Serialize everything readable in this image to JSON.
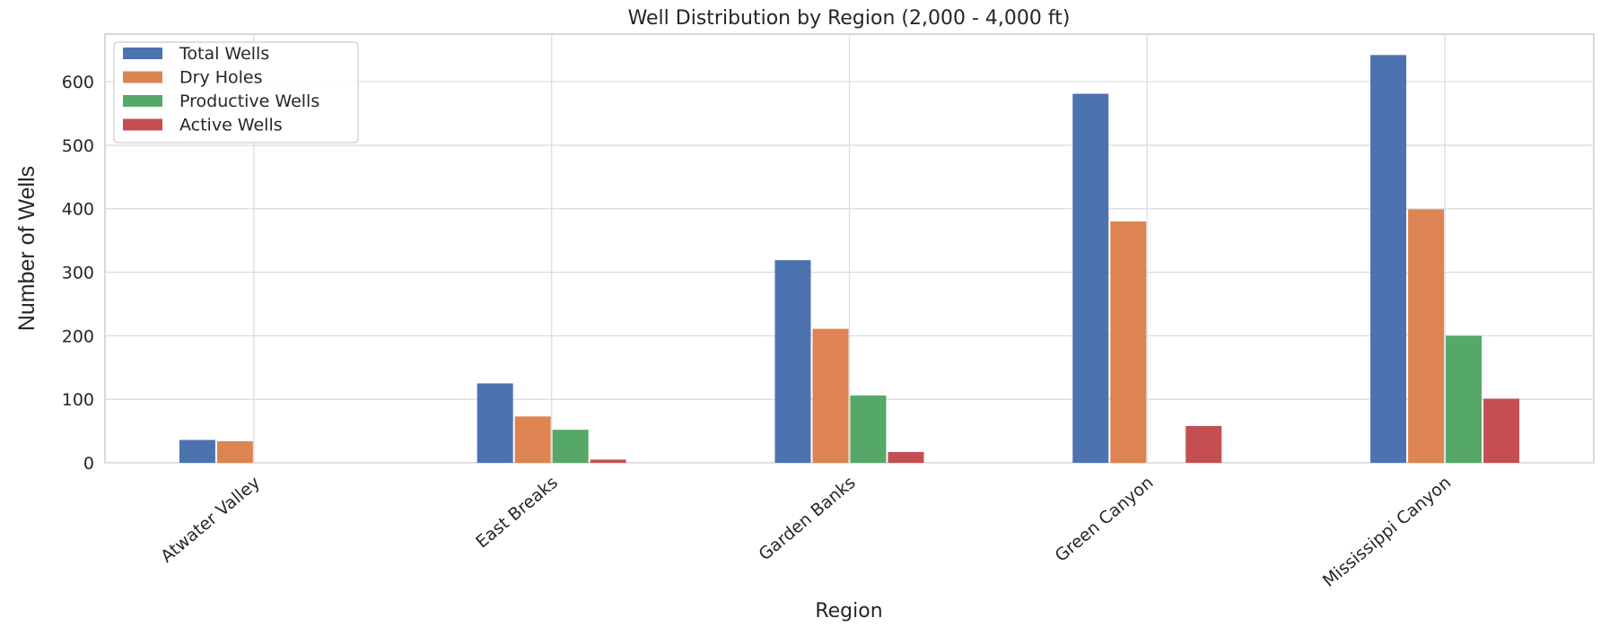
{
  "chart_data": {
    "type": "bar",
    "title": "Well Distribution by Region (2,000 - 4,000 ft)",
    "xlabel": "Region",
    "ylabel": "Number of Wells",
    "categories": [
      "Atwater Valley",
      "East Breaks",
      "Garden Banks",
      "Green Canyon",
      "Mississippi Canyon"
    ],
    "series": [
      {
        "name": "Total Wells",
        "color": "#4c72b0",
        "values": [
          36,
          125,
          319,
          581,
          642
        ]
      },
      {
        "name": "Dry Holes",
        "color": "#dd8452",
        "values": [
          34,
          73,
          211,
          380,
          399
        ]
      },
      {
        "name": "Productive Wells",
        "color": "#55a868",
        "values": [
          0,
          52,
          106,
          0,
          200
        ]
      },
      {
        "name": "Active Wells",
        "color": "#c44e52",
        "values": [
          0,
          5,
          17,
          58,
          101
        ]
      }
    ],
    "ylim": [
      0,
      675
    ],
    "yticks": [
      0,
      100,
      200,
      300,
      400,
      500,
      600
    ],
    "grid": true,
    "legend_position": "top-left"
  }
}
